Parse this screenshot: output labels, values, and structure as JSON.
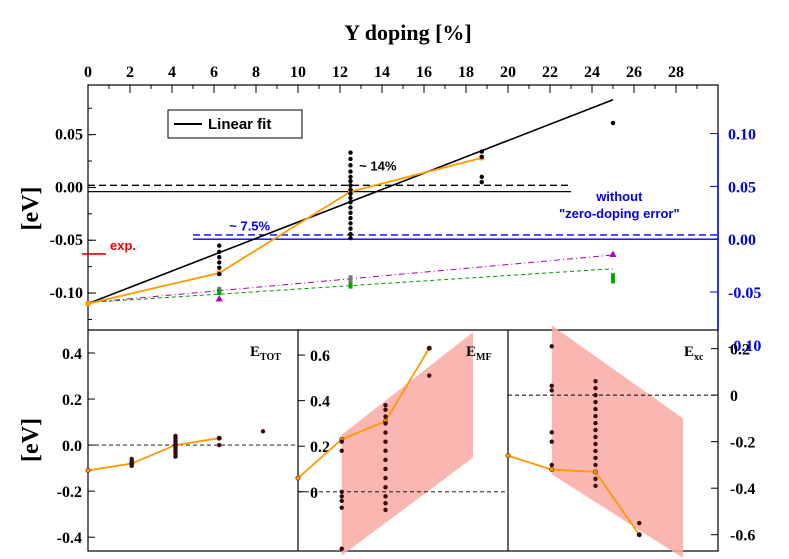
{
  "chart_data": [
    {
      "type": "scatter",
      "panel": "top",
      "xlabel": "Y doping [%]",
      "ylabel": "[eV]",
      "x_ticks": [
        "0",
        "2",
        "4",
        "6",
        "8",
        "10",
        "12",
        "14",
        "16",
        "18",
        "20",
        "22",
        "24",
        "26",
        "28"
      ],
      "xlim": [
        0,
        30
      ],
      "ylim": [
        -0.135,
        0.097
      ],
      "left_ticks": [
        "0.05",
        "0.00",
        "-0.05",
        "-0.10"
      ],
      "left_tick_values": [
        0.05,
        0.0,
        -0.05,
        -0.1
      ],
      "right_ticks": [
        "0.10",
        "0.05",
        "0.00",
        "-0.05",
        "-0.10"
      ],
      "right_tick_values": [
        0.1,
        0.05,
        0.0,
        -0.05,
        -0.1
      ],
      "right_axis_color": "#0000ee",
      "right_axis_offset": -0.049,
      "legend": "Linear fit",
      "annotations": {
        "exp_label": "exp.",
        "exp_value": -0.063,
        "label_7_5": "~ 7.5%",
        "label_14": "~ 14%",
        "without_line1": "without",
        "without_line2": "\"zero-doping error\""
      },
      "linear_fit": {
        "x": [
          0,
          25
        ],
        "y": [
          -0.11,
          0.083
        ],
        "color": "#000000"
      },
      "black_dashed_y": 0.002,
      "black_solid_y": -0.004,
      "black_h_xrange": [
        0,
        23
      ],
      "blue_dashed_y": -0.045,
      "blue_solid_y": -0.049,
      "blue_h_xrange": [
        5,
        30
      ],
      "orange_series": {
        "x": [
          0,
          6.25,
          12.5,
          18.75
        ],
        "y": [
          -0.11,
          -0.081,
          -0.004,
          0.028
        ],
        "color": "#ff9900"
      },
      "purple_dashdot": {
        "x": [
          0,
          25
        ],
        "y": [
          -0.109,
          -0.064
        ],
        "color": "#aa00aa"
      },
      "green_dashed": {
        "x": [
          0,
          25
        ],
        "y": [
          -0.109,
          -0.077
        ],
        "color": "#009900"
      },
      "black_points": [
        [
          6.25,
          -0.055
        ],
        [
          6.25,
          -0.061
        ],
        [
          6.25,
          -0.066
        ],
        [
          6.25,
          -0.071
        ],
        [
          6.25,
          -0.076
        ],
        [
          6.25,
          -0.082
        ],
        [
          6.25,
          -0.097
        ],
        [
          12.5,
          0.033
        ],
        [
          12.5,
          0.027
        ],
        [
          12.5,
          0.021
        ],
        [
          12.5,
          0.015
        ],
        [
          12.5,
          0.01
        ],
        [
          12.5,
          0.006
        ],
        [
          12.5,
          0.002
        ],
        [
          12.5,
          -0.002
        ],
        [
          12.5,
          -0.006
        ],
        [
          12.5,
          -0.01
        ],
        [
          12.5,
          -0.014
        ],
        [
          12.5,
          -0.019
        ],
        [
          12.5,
          -0.024
        ],
        [
          12.5,
          -0.029
        ],
        [
          12.5,
          -0.034
        ],
        [
          12.5,
          -0.039
        ],
        [
          12.5,
          -0.044
        ],
        [
          12.5,
          -0.048
        ],
        [
          18.75,
          0.034
        ],
        [
          18.75,
          0.029
        ],
        [
          18.75,
          0.01
        ],
        [
          18.75,
          0.005
        ],
        [
          25,
          0.061
        ]
      ],
      "gray_points": [
        [
          6.25,
          -0.097
        ],
        [
          12.5,
          -0.086
        ],
        [
          12.5,
          -0.089
        ]
      ],
      "green_points": [
        [
          6.25,
          -0.099
        ],
        [
          12.5,
          -0.093
        ],
        [
          25,
          -0.084
        ],
        [
          25,
          -0.088
        ]
      ],
      "purple_points": [
        [
          6.25,
          -0.105
        ],
        [
          25,
          -0.063
        ]
      ]
    },
    {
      "type": "scatter",
      "panel": "bottom-left",
      "label_main": "E",
      "label_sub": "TOT",
      "ylabel": "[eV]",
      "xlim": [
        0,
        30
      ],
      "ylim": [
        -0.46,
        0.5
      ],
      "y_ticks": [
        "0.4",
        "0.2",
        "0.0",
        "-0.2",
        "-0.4"
      ],
      "y_tick_values": [
        0.4,
        0.2,
        0.0,
        -0.2,
        -0.4
      ],
      "dashed_y": 0.0,
      "orange_series": {
        "x": [
          0,
          6.25,
          12.5,
          18.75
        ],
        "y": [
          -0.11,
          -0.08,
          0.0,
          0.03
        ]
      },
      "points": [
        [
          6.25,
          -0.06
        ],
        [
          6.25,
          -0.07
        ],
        [
          6.25,
          -0.08
        ],
        [
          6.25,
          -0.09
        ],
        [
          12.5,
          0.04
        ],
        [
          12.5,
          0.03
        ],
        [
          12.5,
          0.02
        ],
        [
          12.5,
          0.01
        ],
        [
          12.5,
          0.0
        ],
        [
          12.5,
          -0.01
        ],
        [
          12.5,
          -0.02
        ],
        [
          12.5,
          -0.03
        ],
        [
          12.5,
          -0.04
        ],
        [
          12.5,
          -0.05
        ],
        [
          18.75,
          0.03
        ],
        [
          18.75,
          0.0
        ],
        [
          25,
          0.06
        ]
      ]
    },
    {
      "type": "scatter",
      "panel": "bottom-middle",
      "label_main": "E",
      "label_sub": "MF",
      "xlim": [
        0,
        30
      ],
      "ylim": [
        -0.26,
        0.71
      ],
      "y_ticks": [
        "0.6",
        "0.4",
        "0.2",
        "0"
      ],
      "y_tick_values": [
        0.6,
        0.4,
        0.2,
        0.0
      ],
      "dashed_y": 0.0,
      "band": [
        [
          6.25,
          -0.28
        ],
        [
          6.25,
          0.25
        ],
        [
          25,
          0.7
        ],
        [
          25,
          0.15
        ]
      ],
      "orange_series": {
        "x": [
          0,
          6.25,
          12.5,
          18.75
        ],
        "y": [
          0.06,
          0.23,
          0.31,
          0.63
        ]
      },
      "points": [
        [
          6.25,
          0.22
        ],
        [
          6.25,
          0.18
        ],
        [
          6.25,
          0.0
        ],
        [
          6.25,
          -0.02
        ],
        [
          6.25,
          -0.04
        ],
        [
          6.25,
          -0.07
        ],
        [
          6.25,
          -0.25
        ],
        [
          12.5,
          0.38
        ],
        [
          12.5,
          0.36
        ],
        [
          12.5,
          0.33
        ],
        [
          12.5,
          0.3
        ],
        [
          12.5,
          0.26
        ],
        [
          12.5,
          0.22
        ],
        [
          12.5,
          0.18
        ],
        [
          12.5,
          0.14
        ],
        [
          12.5,
          0.1
        ],
        [
          12.5,
          0.06
        ],
        [
          12.5,
          0.02
        ],
        [
          12.5,
          -0.02
        ],
        [
          12.5,
          -0.05
        ],
        [
          12.5,
          -0.08
        ],
        [
          18.75,
          0.63
        ],
        [
          18.75,
          0.51
        ]
      ]
    },
    {
      "type": "scatter",
      "panel": "bottom-right",
      "label_main": "E",
      "label_sub": "xc",
      "xlim": [
        0,
        30
      ],
      "ylim": [
        -0.67,
        0.28
      ],
      "y_ticks": [
        "0.2",
        "0",
        "-0.2",
        "-0.4",
        "-0.6"
      ],
      "y_tick_values": [
        0.2,
        0.0,
        -0.2,
        -0.4,
        -0.6
      ],
      "dashed_y": 0.0,
      "band": [
        [
          6.25,
          0.3
        ],
        [
          6.25,
          -0.34
        ],
        [
          25,
          -0.7
        ],
        [
          25,
          -0.1
        ]
      ],
      "orange_series": {
        "x": [
          0,
          6.25,
          12.5,
          18.75
        ],
        "y": [
          -0.26,
          -0.32,
          -0.33,
          -0.6
        ]
      },
      "points": [
        [
          6.25,
          0.21
        ],
        [
          6.25,
          0.04
        ],
        [
          6.25,
          0.02
        ],
        [
          6.25,
          -0.16
        ],
        [
          6.25,
          -0.2
        ],
        [
          6.25,
          -0.3
        ],
        [
          12.5,
          0.06
        ],
        [
          12.5,
          0.03
        ],
        [
          12.5,
          0.0
        ],
        [
          12.5,
          -0.03
        ],
        [
          12.5,
          -0.06
        ],
        [
          12.5,
          -0.09
        ],
        [
          12.5,
          -0.12
        ],
        [
          12.5,
          -0.15
        ],
        [
          12.5,
          -0.18
        ],
        [
          12.5,
          -0.21
        ],
        [
          12.5,
          -0.24
        ],
        [
          12.5,
          -0.27
        ],
        [
          12.5,
          -0.3
        ],
        [
          12.5,
          -0.36
        ],
        [
          12.5,
          -0.39
        ],
        [
          18.75,
          -0.55
        ],
        [
          18.75,
          -0.6
        ]
      ]
    }
  ]
}
